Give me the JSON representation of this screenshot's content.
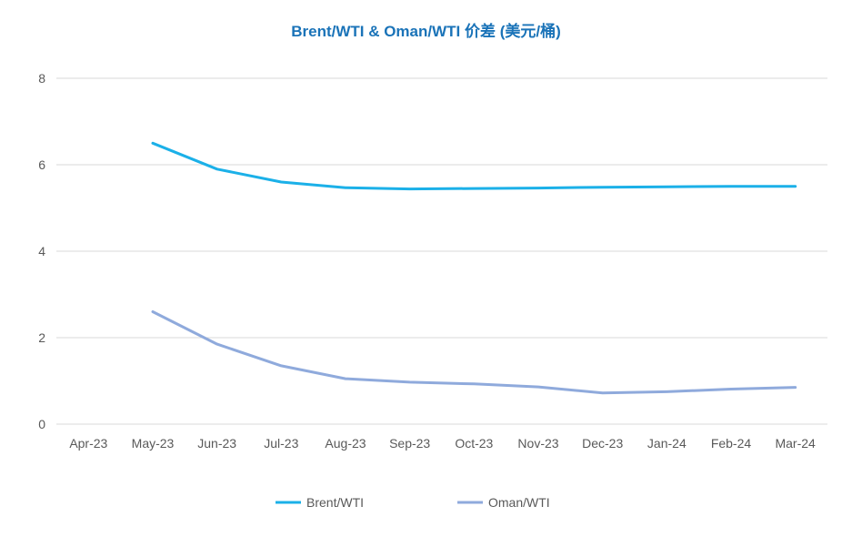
{
  "chart_data": {
    "type": "line",
    "title": "Brent/WTI & Oman/WTI 价差 (美元/桶)",
    "categories": [
      "Apr-23",
      "May-23",
      "Jun-23",
      "Jul-23",
      "Aug-23",
      "Sep-23",
      "Oct-23",
      "Nov-23",
      "Dec-23",
      "Jan-24",
      "Feb-24",
      "Mar-24"
    ],
    "ylim": [
      0,
      8
    ],
    "yticks": [
      "0",
      "2",
      "4",
      "6",
      "8"
    ],
    "grid": true,
    "legend_position": "bottom",
    "series": [
      {
        "name": "Brent/WTI",
        "color": "#1bb0e8",
        "values": [
          null,
          6.5,
          5.9,
          5.6,
          5.47,
          5.44,
          5.45,
          5.46,
          5.48,
          5.49,
          5.5,
          5.5
        ]
      },
      {
        "name": "Oman/WTI",
        "color": "#8faadc",
        "values": [
          null,
          2.6,
          1.85,
          1.35,
          1.05,
          0.97,
          0.93,
          0.86,
          0.72,
          0.75,
          0.81,
          0.85
        ]
      }
    ]
  }
}
